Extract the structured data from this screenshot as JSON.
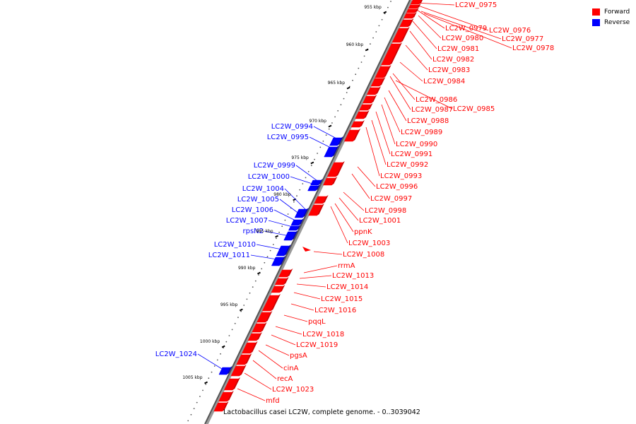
{
  "legend": {
    "forward_label": "Forward",
    "reverse_label": "Reverse",
    "forward_color": "#ff0000",
    "reverse_color": "#0000ff"
  },
  "caption": "Lactobacillus casei LC2W, complete genome. - 0..3039042",
  "axis": {
    "unit": "kbp",
    "ticks": [
      "955 kbp",
      "960 kbp",
      "965 kbp",
      "970 kbp",
      "975 kbp",
      "980 kbp",
      "985 kbp",
      "990 kbp",
      "995 kbp",
      "1000 kbp",
      "1005 kbp"
    ]
  },
  "forward_features": [
    "LC2W_0975",
    "LC2W_0976",
    "LC2W_0979",
    "LC2W_0977",
    "LC2W_0980",
    "LC2W_0978",
    "LC2W_0981",
    "LC2W_0982",
    "LC2W_0983",
    "LC2W_0984",
    "LC2W_0986",
    "LC2W_0987",
    "LC2W_0985",
    "LC2W_0988",
    "LC2W_0989",
    "LC2W_0990",
    "LC2W_0991",
    "LC2W_0992",
    "LC2W_0993",
    "LC2W_0996",
    "LC2W_0997",
    "LC2W_0998",
    "LC2W_1001",
    "ppnK",
    "LC2W_1003",
    "LC2W_1008",
    "rrmA",
    "LC2W_1013",
    "LC2W_1014",
    "LC2W_1015",
    "LC2W_1016",
    "pqqL",
    "LC2W_1018",
    "LC2W_1019",
    "pgsA",
    "cinA",
    "recA",
    "LC2W_1023",
    "mfd"
  ],
  "reverse_features": [
    "LC2W_0994",
    "LC2W_0995",
    "LC2W_0999",
    "LC2W_1000",
    "LC2W_1004",
    "LC2W_1005",
    "LC2W_1006",
    "LC2W_1007",
    "rpsN2",
    "LC2W_1010",
    "LC2W_1011",
    "LC2W_1024"
  ]
}
